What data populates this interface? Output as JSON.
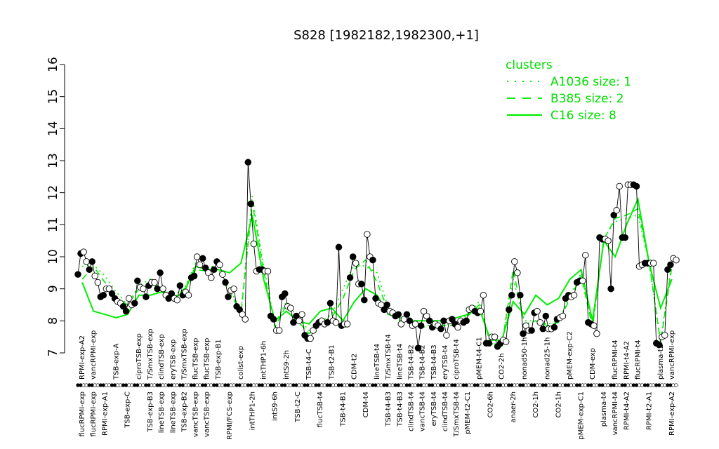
{
  "chart_data": {
    "type": "line",
    "title": "S828 [1982182,1982300,+1]",
    "xlabel": "",
    "ylabel": "",
    "ylim": [
      7,
      16
    ],
    "yticks": [
      7,
      8,
      9,
      10,
      11,
      12,
      13,
      14,
      15,
      16
    ],
    "grid": false,
    "legend": {
      "title": "clusters",
      "placement": "top-right",
      "entries": [
        {
          "label": "A1036 size: 1",
          "dash": "dotted"
        },
        {
          "label": "B385 size: 2",
          "dash": "dashed"
        },
        {
          "label": "C16 size: 8",
          "dash": "solid"
        }
      ]
    },
    "colors": {
      "line": "#00ee00",
      "point_dark": "#000000",
      "point_light": "#ffffff"
    },
    "points_per_group": 4,
    "groups": [
      {
        "bottom": "flucRPMI-exp",
        "top": "RPMI-exp-A2",
        "values": [
          9.45,
          10.1,
          10.15,
          9.85
        ]
      },
      {
        "bottom": "flucRPMI-exp",
        "top": "vancRPMI-exp",
        "values": [
          9.6,
          9.85,
          9.4,
          9.2
        ]
      },
      {
        "bottom": "RPMI-exp-A1",
        "top": "",
        "values": [
          8.75,
          8.8,
          9.0,
          9.0
        ]
      },
      {
        "bottom": "",
        "top": "TSB-exp-A",
        "values": [
          8.85,
          8.7,
          8.6,
          8.55
        ]
      },
      {
        "bottom": "TSB-exp-C",
        "top": "",
        "values": [
          8.45,
          8.3,
          8.7,
          8.5
        ]
      },
      {
        "bottom": "",
        "top": "ciproTSB-exp",
        "values": [
          8.55,
          9.25,
          9.05,
          9.0
        ]
      },
      {
        "bottom": "TSB-exp-B3",
        "top": "T/SmxTSB-exp",
        "values": [
          8.75,
          9.1,
          9.2,
          9.2
        ]
      },
      {
        "bottom": "lineTSB-exp",
        "top": "clindTSB-exp",
        "values": [
          9.0,
          9.5,
          9.0,
          8.8
        ]
      },
      {
        "bottom": "lineTSB-exp",
        "top": "eryTSB-exp",
        "values": [
          8.7,
          8.85,
          8.7,
          8.65
        ]
      },
      {
        "bottom": "TSB-exp-B2",
        "top": "T/SmxTSB-exp",
        "values": [
          9.1,
          8.8,
          8.9,
          8.8
        ]
      },
      {
        "bottom": "vancTSB-exp",
        "top": "flucTSB-exp",
        "values": [
          9.35,
          9.4,
          10.0,
          9.75
        ]
      },
      {
        "bottom": "vancTSB-exp",
        "top": "flucTSB-exp",
        "values": [
          9.95,
          9.65,
          9.5,
          9.35
        ]
      },
      {
        "bottom": "",
        "top": "TSB-exp-B1",
        "values": [
          9.6,
          9.85,
          9.75,
          9.45
        ]
      },
      {
        "bottom": "RPMI/FCS-exp",
        "top": "",
        "values": [
          9.2,
          8.75,
          8.95,
          9.0
        ]
      },
      {
        "bottom": "",
        "top": "colist-exp",
        "values": [
          8.45,
          8.35,
          8.2,
          8.05
        ]
      },
      {
        "bottom": "intTHP1-2h",
        "top": "",
        "values": [
          12.95,
          11.65,
          10.4,
          9.55
        ]
      },
      {
        "bottom": "",
        "top": "intTHP1-6h",
        "values": [
          9.6,
          9.6,
          9.55,
          9.55
        ]
      },
      {
        "bottom": "intS9-6h",
        "top": "",
        "values": [
          8.15,
          8.05,
          7.7,
          7.7
        ]
      },
      {
        "bottom": "",
        "top": "intS9-2h",
        "values": [
          8.75,
          8.85,
          8.45,
          8.4
        ]
      },
      {
        "bottom": "TSB-t2-C",
        "top": "",
        "values": [
          7.95,
          8.15,
          8.0,
          8.2
        ]
      },
      {
        "bottom": "",
        "top": "TSB-t4-C",
        "values": [
          7.55,
          7.45,
          7.45,
          7.7
        ]
      },
      {
        "bottom": "flucTSB-t4",
        "top": "",
        "values": [
          7.85,
          7.95,
          8.0,
          7.9
        ]
      },
      {
        "bottom": "",
        "top": "TSB-t2-B1",
        "values": [
          7.95,
          8.55,
          8.0,
          7.95
        ]
      },
      {
        "bottom": "TSB-t4-B1",
        "top": "",
        "values": [
          10.3,
          7.85,
          7.9,
          7.9
        ]
      },
      {
        "bottom": "",
        "top": "CDM-t2",
        "values": [
          9.35,
          10.0,
          9.8,
          9.15
        ]
      },
      {
        "bottom": "CDM-t4",
        "top": "",
        "values": [
          9.15,
          8.65,
          10.7,
          10.0
        ]
      },
      {
        "bottom": "",
        "top": "lineTSB-t4",
        "values": [
          9.9,
          8.7,
          8.55,
          8.5
        ]
      },
      {
        "bottom": "TSB-t4-B3",
        "top": "T/SmxTSB-t4",
        "values": [
          8.35,
          8.5,
          8.3,
          8.25
        ]
      },
      {
        "bottom": "TSB-t4-B3",
        "top": "lineTSB-t4",
        "values": [
          8.15,
          8.2,
          7.9,
          8.05
        ]
      },
      {
        "bottom": "clindTSB-t4",
        "top": "TSB-t4-B2",
        "values": [
          8.2,
          8.0,
          7.85,
          7.9
        ]
      },
      {
        "bottom": "vancTSB-t4",
        "top": "TSB-t4-B2",
        "values": [
          7.15,
          7.85,
          8.3,
          8.15
        ]
      },
      {
        "bottom": "eryTSB-t4",
        "top": "TSB-t4-B3",
        "values": [
          8.0,
          7.8,
          7.9,
          7.85
        ]
      },
      {
        "bottom": "clindTSB-t4",
        "top": "eryTSB-t4",
        "values": [
          7.75,
          8.0,
          7.55,
          8.0
        ]
      },
      {
        "bottom": "T/SmxTSB-t4",
        "top": "ciproTSB-t4",
        "values": [
          8.05,
          7.9,
          7.8,
          8.0
        ]
      },
      {
        "bottom": "pMEM-t2-C1",
        "top": "",
        "values": [
          7.95,
          8.0,
          8.35,
          8.4
        ]
      },
      {
        "bottom": "",
        "top": "pMEM-t4-C1",
        "values": [
          8.3,
          8.25,
          8.3,
          8.8
        ]
      },
      {
        "bottom": "CO2-6h",
        "top": "",
        "values": [
          7.3,
          7.3,
          7.5,
          7.5
        ]
      },
      {
        "bottom": "",
        "top": "CO2-2h",
        "values": [
          7.2,
          7.3,
          7.4,
          7.35
        ]
      },
      {
        "bottom": "anaer-2h",
        "top": "",
        "values": [
          8.35,
          8.8,
          9.85,
          9.5
        ]
      },
      {
        "bottom": "",
        "top": "nonad50-1h",
        "values": [
          8.8,
          7.6,
          7.85,
          7.7
        ]
      },
      {
        "bottom": "CO2-1h",
        "top": "",
        "values": [
          7.7,
          8.25,
          8.3,
          7.95
        ]
      },
      {
        "bottom": "",
        "top": "nonad25-1h",
        "values": [
          7.75,
          8.15,
          7.75,
          7.75
        ]
      },
      {
        "bottom": "CO2-1h",
        "top": "",
        "values": [
          7.8,
          8.05,
          8.1,
          8.15
        ]
      },
      {
        "bottom": "",
        "top": "pMEM-exp-C2",
        "values": [
          8.7,
          8.8,
          8.75,
          8.8
        ]
      },
      {
        "bottom": "pMEM-exp-C1",
        "top": "",
        "values": [
          9.2,
          9.25,
          9.25,
          10.05
        ]
      },
      {
        "bottom": "",
        "top": "CDM-exp",
        "values": [
          7.95,
          7.9,
          7.85,
          7.6
        ]
      },
      {
        "bottom": "plasma-t4",
        "top": "",
        "values": [
          10.6,
          10.55,
          10.55,
          10.5
        ]
      },
      {
        "bottom": "vancRPMI-t4",
        "top": "flucRPMI-t4",
        "values": [
          9.0,
          11.3,
          11.45,
          12.2
        ]
      },
      {
        "bottom": "RPMI-t4-A2",
        "top": "RPMI-t4-A2",
        "values": [
          10.6,
          10.6,
          12.25,
          12.25
        ]
      },
      {
        "bottom": "",
        "top": "flucRPMI-t4",
        "values": [
          12.25,
          12.2,
          9.7,
          9.75
        ]
      },
      {
        "bottom": "RPMI-t2-A1",
        "top": "",
        "values": [
          9.8,
          9.8,
          9.8,
          9.8
        ]
      },
      {
        "bottom": "",
        "top": "plasma-t2",
        "values": [
          7.3,
          7.25,
          7.5,
          7.55
        ]
      },
      {
        "bottom": "RPMI-exp-A2",
        "top": "vancRPMI-exp",
        "values": [
          9.6,
          9.75,
          9.95,
          9.9
        ]
      }
    ],
    "series": [
      {
        "name": "A1036",
        "values": [
          9.7,
          9.75,
          9.4,
          8.9,
          8.5,
          9.1,
          9.3,
          9.0,
          8.8,
          9.0,
          9.8,
          9.6,
          9.8,
          9.0,
          8.3,
          11.9,
          9.7,
          7.9,
          8.6,
          8.1,
          7.7,
          7.95,
          8.2,
          9.0,
          9.8,
          9.7,
          9.5,
          8.4,
          8.1,
          8.0,
          7.8,
          7.9,
          7.9,
          7.9,
          8.2,
          8.6,
          7.3,
          7.25,
          9.3,
          8.0,
          8.0,
          7.9,
          8.0,
          8.75,
          9.5,
          7.85,
          10.6,
          11.1,
          11.2,
          11.3,
          9.8,
          7.4,
          9.8
        ]
      },
      {
        "name": "B385",
        "values": [
          9.3,
          9.7,
          9.2,
          8.7,
          8.5,
          9.0,
          9.1,
          9.0,
          8.7,
          9.0,
          9.6,
          9.55,
          9.6,
          8.95,
          8.2,
          11.7,
          9.55,
          7.8,
          8.5,
          8.0,
          7.6,
          7.9,
          8.1,
          8.7,
          9.6,
          9.9,
          9.2,
          8.3,
          8.0,
          7.95,
          7.8,
          7.85,
          7.85,
          7.85,
          8.15,
          8.5,
          7.3,
          7.2,
          9.6,
          7.9,
          8.0,
          7.85,
          7.95,
          8.7,
          9.4,
          7.8,
          10.55,
          11.2,
          11.3,
          11.5,
          9.8,
          7.3,
          9.7
        ]
      },
      {
        "name": "C16",
        "values": [
          9.2,
          8.3,
          8.2,
          8.1,
          8.2,
          8.8,
          8.8,
          8.9,
          8.7,
          8.9,
          9.7,
          9.6,
          9.6,
          9.5,
          9.8,
          11.3,
          9.3,
          8.0,
          8.3,
          8.0,
          7.9,
          8.3,
          8.4,
          8.0,
          8.6,
          9.0,
          8.8,
          8.2,
          8.1,
          8.0,
          8.0,
          8.0,
          8.0,
          8.1,
          8.2,
          8.4,
          7.4,
          7.4,
          8.6,
          8.2,
          8.8,
          8.5,
          8.7,
          9.3,
          9.6,
          8.0,
          10.5,
          10.0,
          11.0,
          11.8,
          9.8,
          8.4,
          9.3
        ]
      }
    ]
  }
}
